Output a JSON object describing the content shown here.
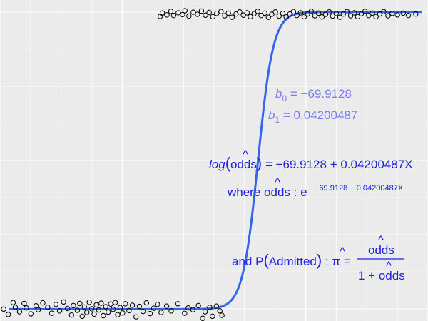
{
  "chart_data": {
    "type": "scatter",
    "title": "",
    "xlabel": "",
    "ylabel": "",
    "xlim": [
      1580,
      1720
    ],
    "ylim": [
      -0.04,
      1.04
    ],
    "grid": true,
    "fit": {
      "type": "logistic",
      "intercept": -69.9128,
      "slope": 0.04200487,
      "color": "#3366ee"
    },
    "points": {
      "marker": "open-circle",
      "color": "#000000",
      "group_zero": [
        [
          1581.2,
          0.0
        ],
        [
          1582.7,
          -0.018
        ],
        [
          1584.3,
          0.022
        ],
        [
          1585.0,
          0.006
        ],
        [
          1586.4,
          -0.009
        ],
        [
          1587.9,
          0.019
        ],
        [
          1588.6,
          0.004
        ],
        [
          1590.1,
          -0.016
        ],
        [
          1591.8,
          0.011
        ],
        [
          1592.5,
          -0.002
        ],
        [
          1594.0,
          0.021
        ],
        [
          1595.6,
          0.006
        ],
        [
          1596.9,
          -0.014
        ],
        [
          1598.3,
          0.016
        ],
        [
          1599.5,
          -0.006
        ],
        [
          1600.8,
          0.024
        ],
        [
          1602.1,
          0.002
        ],
        [
          1603.4,
          -0.02
        ],
        [
          1604.0,
          0.012
        ],
        [
          1605.3,
          -0.004
        ],
        [
          1606.1,
          0.019
        ],
        [
          1606.9,
          -0.024
        ],
        [
          1607.6,
          0.007
        ],
        [
          1608.4,
          -0.011
        ],
        [
          1609.2,
          0.023
        ],
        [
          1610.0,
          0.001
        ],
        [
          1610.8,
          -0.017
        ],
        [
          1611.5,
          0.014
        ],
        [
          1612.3,
          -0.003
        ],
        [
          1613.1,
          0.02
        ],
        [
          1613.8,
          -0.022
        ],
        [
          1614.6,
          0.008
        ],
        [
          1615.4,
          -0.01
        ],
        [
          1616.2,
          0.017
        ],
        [
          1617.0,
          -0.001
        ],
        [
          1617.7,
          0.022
        ],
        [
          1618.5,
          -0.019
        ],
        [
          1619.3,
          0.005
        ],
        [
          1620.1,
          -0.013
        ],
        [
          1621.0,
          0.018
        ],
        [
          1622.2,
          -0.005
        ],
        [
          1623.3,
          0.013
        ],
        [
          1624.5,
          -0.026
        ],
        [
          1625.6,
          0.009
        ],
        [
          1626.8,
          -0.008
        ],
        [
          1627.9,
          0.021
        ],
        [
          1629.1,
          -0.015
        ],
        [
          1630.3,
          0.003
        ],
        [
          1631.5,
          0.016
        ],
        [
          1632.7,
          -0.011
        ],
        [
          1634.5,
          0.01
        ],
        [
          1636.0,
          -0.006
        ],
        [
          1638.2,
          0.018
        ],
        [
          1640.4,
          -0.014
        ],
        [
          1641.6,
          0.004
        ],
        [
          1643.1,
          -0.002
        ],
        [
          1644.9,
          0.012
        ],
        [
          1646.3,
          -0.031
        ],
        [
          1647.1,
          -0.009
        ],
        [
          1648.6,
          0.006
        ],
        [
          1649.5,
          -0.024
        ],
        [
          1650.8,
          0.01
        ],
        [
          1651.9,
          -0.006
        ],
        [
          1652.6,
          -0.021
        ]
      ],
      "group_one": [
        [
          1632.4,
          0.985
        ],
        [
          1633.1,
          0.996
        ],
        [
          1634.6,
          0.99
        ],
        [
          1635.9,
          1.002
        ],
        [
          1636.8,
          0.988
        ],
        [
          1638.3,
          0.997
        ],
        [
          1639.7,
          0.991
        ],
        [
          1640.5,
          1.004
        ],
        [
          1641.8,
          0.986
        ],
        [
          1643.2,
          0.999
        ],
        [
          1644.6,
          0.992
        ],
        [
          1645.9,
          1.003
        ],
        [
          1647.2,
          0.989
        ],
        [
          1648.4,
          0.998
        ],
        [
          1649.6,
          0.984
        ],
        [
          1650.9,
          0.995
        ],
        [
          1652.3,
          1.001
        ],
        [
          1653.5,
          0.987
        ],
        [
          1654.7,
          0.996
        ],
        [
          1655.9,
          0.982
        ],
        [
          1657.2,
          0.993
        ],
        [
          1658.4,
          1.0
        ],
        [
          1659.6,
          0.989
        ],
        [
          1660.8,
          0.997
        ],
        [
          1661.9,
          0.984
        ],
        [
          1663.1,
          0.994
        ],
        [
          1664.3,
          1.002
        ],
        [
          1665.4,
          0.988
        ],
        [
          1666.6,
          0.996
        ],
        [
          1667.8,
          0.982
        ],
        [
          1668.9,
          0.992
        ],
        [
          1670.1,
          1.0
        ],
        [
          1671.3,
          0.986
        ],
        [
          1672.5,
          0.995
        ],
        [
          1673.6,
          0.983
        ],
        [
          1674.8,
          0.993
        ],
        [
          1676.0,
          1.001
        ],
        [
          1677.1,
          0.988
        ],
        [
          1678.3,
          0.997
        ],
        [
          1679.5,
          0.984
        ],
        [
          1680.6,
          0.993
        ],
        [
          1681.8,
          1.002
        ],
        [
          1683.0,
          0.987
        ],
        [
          1684.2,
          0.996
        ],
        [
          1685.3,
          0.983
        ],
        [
          1686.5,
          0.992
        ],
        [
          1687.7,
          1.0
        ],
        [
          1688.8,
          0.986
        ],
        [
          1690.0,
          0.995
        ],
        [
          1691.2,
          0.982
        ],
        [
          1692.3,
          0.993
        ],
        [
          1693.5,
          1.001
        ],
        [
          1694.7,
          0.987
        ],
        [
          1695.9,
          0.997
        ],
        [
          1697.0,
          0.984
        ],
        [
          1698.2,
          0.994
        ],
        [
          1699.4,
          1.002
        ],
        [
          1700.6,
          0.988
        ],
        [
          1701.8,
          0.996
        ],
        [
          1703.0,
          0.984
        ],
        [
          1704.2,
          0.993
        ],
        [
          1705.5,
          1.001
        ],
        [
          1706.9,
          0.987
        ],
        [
          1708.3,
          0.995
        ],
        [
          1710.0,
          0.99
        ],
        [
          1711.9,
          0.996
        ],
        [
          1713.6,
          0.988
        ],
        [
          1716.0,
          0.993
        ]
      ]
    },
    "annotations": {
      "b0_lhs": "b",
      "b0_sub": "0",
      "b0_rhs": " = −69.9128",
      "b1_lhs": "b",
      "b1_sub": "1",
      "b1_rhs": " = 0.04200487",
      "log_word": "log",
      "odds_word": "odds",
      "log_rhs": " =   −69.9128 + 0.04200487X",
      "where_text": "where",
      "where_colon": " :  e",
      "exponent": "−69.9128 + 0.04200487X",
      "and_text": "and  P",
      "admitted_text": "Admitted",
      "pi_colon": " :  ",
      "pi_symbol": "π",
      "pi_equals": " = ",
      "denominator_prefix": "1 + ",
      "hat_mark": "^"
    }
  }
}
